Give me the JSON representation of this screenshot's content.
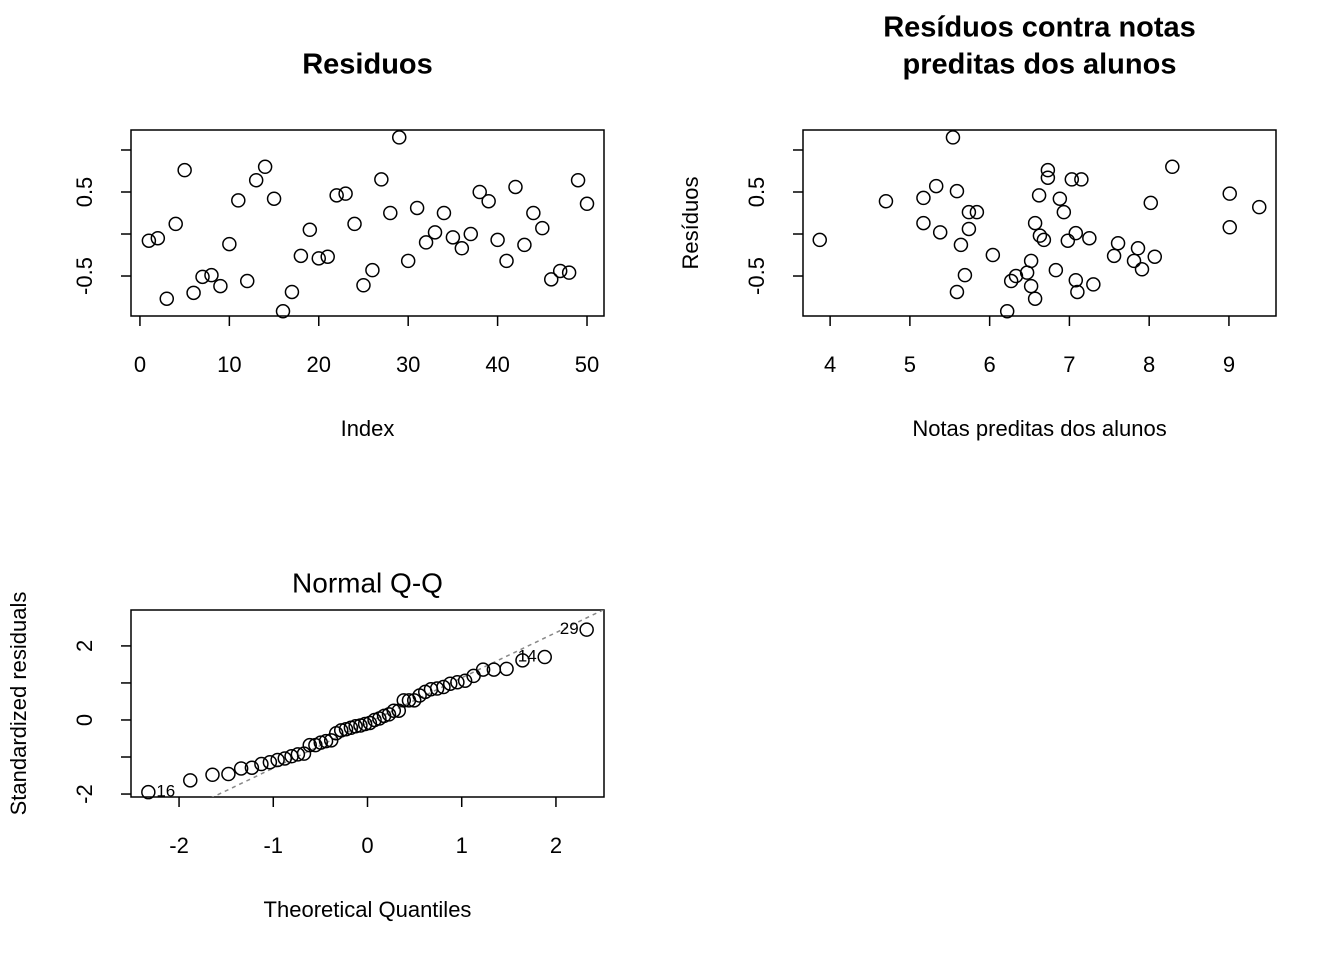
{
  "chart_data": [
    {
      "type": "scatter",
      "title": [
        "Residuos"
      ],
      "title_weight": "bold",
      "x_label": "Index",
      "color": "#000000",
      "xlim": [
        -1.0,
        51.9
      ],
      "ylim": [
        -0.976,
        1.238
      ],
      "xticks": [
        0,
        10,
        20,
        30,
        40,
        50
      ],
      "yticks": [
        -0.5,
        0.5
      ],
      "minor_yticks": [
        0,
        1
      ],
      "x": [
        1,
        2,
        3,
        4,
        5,
        6,
        7,
        8,
        9,
        10,
        11,
        12,
        13,
        14,
        15,
        16,
        17,
        18,
        19,
        20,
        21,
        22,
        23,
        24,
        25,
        26,
        27,
        28,
        29,
        30,
        31,
        32,
        33,
        34,
        35,
        36,
        37,
        38,
        39,
        40,
        41,
        42,
        43,
        44,
        45,
        46,
        47,
        48,
        49,
        50
      ],
      "values": [
        -0.08,
        -0.05,
        -0.77,
        0.12,
        0.76,
        -0.7,
        -0.51,
        -0.49,
        -0.62,
        -0.12,
        0.4,
        -0.56,
        0.64,
        0.8,
        0.42,
        -0.92,
        -0.69,
        -0.26,
        0.05,
        -0.29,
        -0.27,
        0.46,
        0.48,
        0.12,
        -0.61,
        -0.43,
        0.65,
        0.25,
        1.15,
        -0.32,
        0.31,
        -0.1,
        0.02,
        0.25,
        -0.04,
        -0.17,
        0.0,
        0.5,
        0.39,
        -0.07,
        -0.32,
        0.56,
        -0.13,
        0.25,
        0.07,
        -0.54,
        -0.44,
        -0.46,
        0.64,
        0.36
      ]
    },
    {
      "type": "scatter",
      "title": [
        "Resíduos contra notas",
        "preditas dos alunos"
      ],
      "title_weight": "bold",
      "x_label": "Notas preditas dos alunos",
      "y_label": "Resíduos",
      "color": "#000000",
      "xlim": [
        3.66,
        9.59
      ],
      "ylim": [
        -0.976,
        1.238
      ],
      "xticks": [
        4,
        5,
        6,
        7,
        8,
        9
      ],
      "yticks": [
        -0.5,
        0.5
      ],
      "minor_yticks": [
        0,
        1
      ],
      "x": [
        3.87,
        4.7,
        5.17,
        5.33,
        5.54,
        5.59,
        5.17,
        5.38,
        5.59,
        5.64,
        5.69,
        5.74,
        5.74,
        5.84,
        6.04,
        6.22,
        6.27,
        6.33,
        6.47,
        6.52,
        6.52,
        6.57,
        6.57,
        6.62,
        6.63,
        6.68,
        6.73,
        6.73,
        6.83,
        6.88,
        6.93,
        6.98,
        7.03,
        7.08,
        7.08,
        7.1,
        7.15,
        7.25,
        7.3,
        7.56,
        7.61,
        7.81,
        7.86,
        7.91,
        8.02,
        8.07,
        8.29,
        9.01,
        9.01,
        9.38
      ],
      "values": [
        -0.07,
        0.39,
        0.43,
        0.57,
        1.15,
        0.51,
        0.13,
        0.02,
        -0.69,
        -0.13,
        -0.49,
        0.26,
        0.06,
        0.26,
        -0.25,
        -0.92,
        -0.56,
        -0.5,
        -0.46,
        -0.32,
        -0.62,
        -0.77,
        0.13,
        0.46,
        -0.02,
        -0.07,
        0.76,
        0.67,
        -0.43,
        0.42,
        0.26,
        -0.08,
        0.65,
        -0.55,
        0.01,
        -0.69,
        0.65,
        -0.05,
        -0.6,
        -0.26,
        -0.11,
        -0.32,
        -0.17,
        -0.42,
        0.37,
        -0.27,
        0.8,
        0.48,
        0.08,
        0.32
      ]
    },
    {
      "type": "qq",
      "title": [
        "Normal Q-Q"
      ],
      "title_weight": "normal",
      "x_label": "Theoretical Quantiles",
      "y_label": "Standardized residuals",
      "color": "#000000",
      "xlim": [
        -2.51,
        2.51
      ],
      "ylim": [
        -2.08,
        2.97
      ],
      "xticks": [
        -2,
        -1,
        0,
        1,
        2
      ],
      "yticks": [
        -2,
        0,
        2
      ],
      "minor_yticks": [
        -1,
        1
      ],
      "qqline": {
        "intercept": -0.08,
        "slope": 1.22,
        "color": "#888888"
      },
      "x": [
        -2.326,
        -1.881,
        -1.645,
        -1.476,
        -1.341,
        -1.227,
        -1.126,
        -1.036,
        -0.954,
        -0.878,
        -0.806,
        -0.739,
        -0.674,
        -0.613,
        -0.553,
        -0.496,
        -0.44,
        -0.385,
        -0.332,
        -0.279,
        -0.228,
        -0.176,
        -0.126,
        -0.075,
        -0.025,
        0.025,
        0.075,
        0.126,
        0.176,
        0.228,
        0.279,
        0.332,
        0.385,
        0.44,
        0.496,
        0.553,
        0.613,
        0.674,
        0.739,
        0.806,
        0.878,
        0.954,
        1.036,
        1.126,
        1.227,
        1.341,
        1.476,
        1.645,
        1.881,
        2.326
      ],
      "values": [
        -1.95,
        -1.63,
        -1.48,
        -1.46,
        -1.31,
        -1.29,
        -1.19,
        -1.14,
        -1.08,
        -1.04,
        -0.98,
        -0.93,
        -0.91,
        -0.68,
        -0.68,
        -0.61,
        -0.57,
        -0.55,
        -0.36,
        -0.28,
        -0.25,
        -0.21,
        -0.17,
        -0.15,
        -0.11,
        -0.08,
        0.0,
        0.04,
        0.11,
        0.15,
        0.25,
        0.25,
        0.53,
        0.53,
        0.53,
        0.66,
        0.76,
        0.83,
        0.85,
        0.89,
        0.98,
        1.02,
        1.06,
        1.19,
        1.36,
        1.36,
        1.38,
        1.61,
        1.7,
        2.44
      ],
      "point_labels": [
        "16",
        null,
        null,
        null,
        null,
        null,
        null,
        null,
        null,
        null,
        null,
        null,
        null,
        null,
        null,
        null,
        null,
        null,
        null,
        null,
        null,
        null,
        null,
        null,
        null,
        null,
        null,
        null,
        null,
        null,
        null,
        null,
        null,
        null,
        null,
        null,
        null,
        null,
        null,
        null,
        null,
        null,
        null,
        null,
        null,
        null,
        null,
        null,
        "14",
        "29"
      ]
    }
  ]
}
